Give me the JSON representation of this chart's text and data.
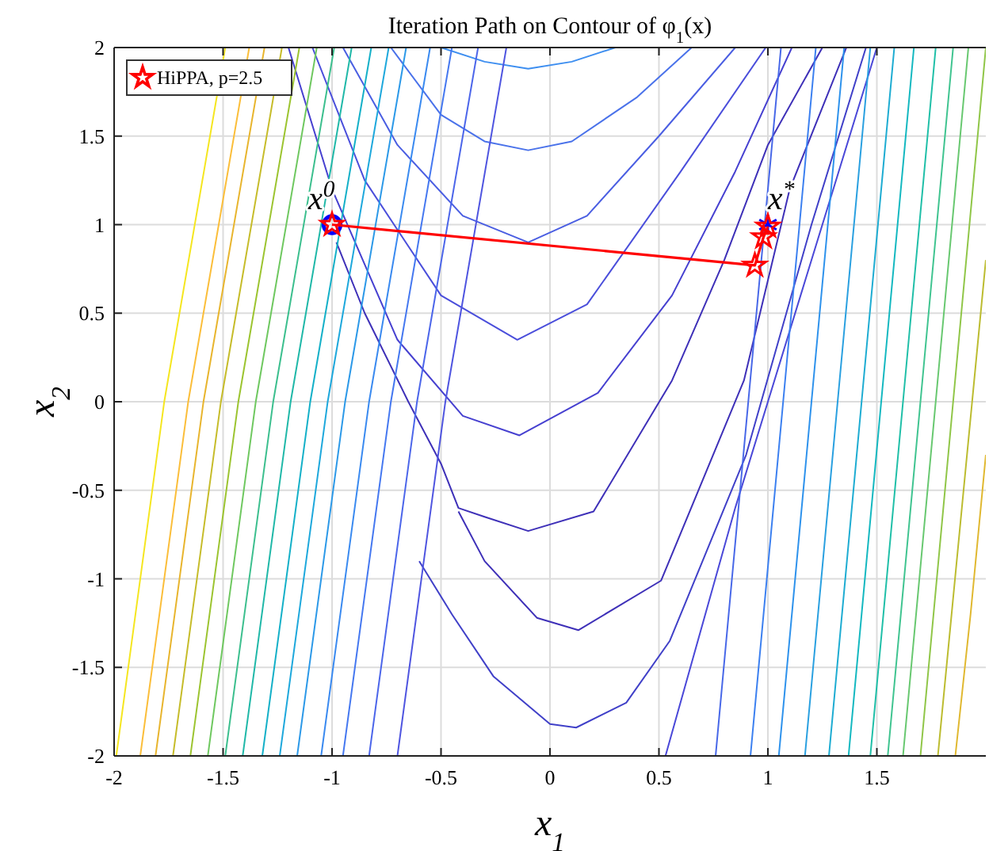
{
  "chart_data": {
    "type": "line",
    "title": "Iteration Path on Contour of φ$_{1}$(x)",
    "xlabel": "x$_{1}$",
    "ylabel": "x$_{2}$",
    "xlim": [
      -2,
      2
    ],
    "ylim": [
      -2,
      2
    ],
    "xticks": [
      -2,
      -1.5,
      -1,
      -0.5,
      0,
      0.5,
      1,
      1.5
    ],
    "yticks": [
      -2,
      -1.5,
      -1,
      -0.5,
      0,
      0.5,
      1,
      1.5,
      2
    ],
    "grid": true,
    "legend": "top left",
    "annotations": [
      {
        "text": "x$^{0}$",
        "x": -1,
        "y": 1
      },
      {
        "text": "x$^{*}$",
        "x": 1,
        "y": 1
      }
    ],
    "series": [
      {
        "color": "#3d8ef0",
        "marker": "none",
        "x": [
          -0.5,
          -0.3,
          -0.1,
          0.1,
          0.3
        ],
        "values": [
          2,
          1.92,
          1.88,
          1.92,
          2
        ]
      },
      {
        "color": "#4a72ea",
        "marker": "none",
        "x": [
          -0.73,
          -0.5,
          -0.3,
          -0.1,
          0.1,
          0.4,
          0.65
        ],
        "values": [
          2,
          1.62,
          1.47,
          1.42,
          1.47,
          1.72,
          2
        ]
      },
      {
        "color": "#4a5ee2",
        "marker": "none",
        "x": [
          -0.95,
          -0.7,
          -0.4,
          -0.1,
          0.17,
          0.5,
          0.85
        ],
        "values": [
          2,
          1.45,
          1.05,
          0.9,
          1.05,
          1.5,
          2
        ]
      },
      {
        "color": "#4a4edb",
        "marker": "none",
        "x": [
          -1.09,
          -0.85,
          -0.5,
          -0.15,
          0.17,
          0.6,
          0.99
        ],
        "values": [
          2,
          1.25,
          0.6,
          0.35,
          0.55,
          1.3,
          2
        ]
      },
      {
        "color": "#4640d0",
        "marker": "none",
        "x": [
          -1.2,
          -1.0,
          -0.7,
          -0.4,
          -0.14,
          0.22,
          0.56,
          0.85,
          1.11
        ],
        "values": [
          2,
          1.2,
          0.35,
          -0.08,
          -0.19,
          0.05,
          0.6,
          1.3,
          2
        ]
      },
      {
        "color": "#3e30b8",
        "marker": "none",
        "x": [
          -0.98,
          -0.85,
          -0.65,
          -0.5,
          -0.42,
          -0.3,
          -0.1,
          0.2,
          0.56,
          0.8,
          1.0,
          1.25
        ],
        "values": [
          0.9,
          0.5,
          0.0,
          -0.35,
          -0.6,
          -0.65,
          -0.73,
          -0.62,
          0.12,
          0.8,
          1.45,
          2
        ]
      },
      {
        "color": "#3e30b8",
        "marker": "none",
        "x": [
          -0.42,
          -0.3,
          -0.06,
          0.13,
          0.51,
          0.89,
          1.1,
          1.36
        ],
        "values": [
          -0.62,
          -0.9,
          -1.22,
          -1.29,
          -1.01,
          0.12,
          1.2,
          2
        ]
      },
      {
        "color": "#4040c8",
        "marker": "none",
        "x": [
          -0.6,
          -0.45,
          -0.26,
          0,
          0.12,
          0.35,
          0.55,
          0.9,
          1.2,
          1.45
        ],
        "values": [
          -0.9,
          -1.2,
          -1.55,
          -1.82,
          -1.84,
          -1.7,
          -1.35,
          -0.3,
          1.0,
          2
        ]
      },
      {
        "color": "#4a48d8",
        "marker": "none",
        "x": [
          0.53,
          0.85,
          1.15,
          1.5
        ],
        "values": [
          -2,
          -0.6,
          0.6,
          2
        ]
      },
      {
        "color": "#f5e620",
        "marker": "none",
        "x": [
          -1.99,
          -1.77,
          -1.49
        ],
        "values": [
          -2,
          0,
          2
        ]
      },
      {
        "color": "#fbbe3a",
        "marker": "none",
        "x": [
          -1.88,
          -1.66,
          -1.38
        ],
        "values": [
          -2,
          0,
          2
        ]
      },
      {
        "color": "#e8b52e",
        "marker": "none",
        "x": [
          -1.81,
          -1.59,
          -1.31
        ],
        "values": [
          -2,
          0,
          2
        ]
      },
      {
        "color": "#c6bc2a",
        "marker": "none",
        "x": [
          -1.73,
          -1.51,
          -1.23
        ],
        "values": [
          -2,
          0,
          2
        ]
      },
      {
        "color": "#9cc430",
        "marker": "none",
        "x": [
          -1.65,
          -1.43,
          -1.15
        ],
        "values": [
          -2,
          0,
          2
        ]
      },
      {
        "color": "#6fc860",
        "marker": "none",
        "x": [
          -1.57,
          -1.35,
          -1.07
        ],
        "values": [
          -2,
          0,
          2
        ]
      },
      {
        "color": "#3cbf8e",
        "marker": "none",
        "x": [
          -1.49,
          -1.27,
          -0.99
        ],
        "values": [
          -2,
          0,
          2
        ]
      },
      {
        "color": "#20b8a8",
        "marker": "none",
        "x": [
          -1.41,
          -1.19,
          -0.91
        ],
        "values": [
          -2,
          0,
          2
        ]
      },
      {
        "color": "#14b0c8",
        "marker": "none",
        "x": [
          -1.32,
          -1.1,
          -0.82
        ],
        "values": [
          -2,
          0,
          2
        ]
      },
      {
        "color": "#1ea8dc",
        "marker": "none",
        "x": [
          -1.24,
          -1.02,
          -0.74
        ],
        "values": [
          -2,
          0,
          2
        ]
      },
      {
        "color": "#2c99e8",
        "marker": "none",
        "x": [
          -1.16,
          -0.94,
          -0.66
        ],
        "values": [
          -2,
          0,
          2
        ]
      },
      {
        "color": "#3a8af0",
        "marker": "none",
        "x": [
          -1.05,
          -0.83,
          -0.55
        ],
        "values": [
          -2,
          0,
          2
        ]
      },
      {
        "color": "#4578f0",
        "marker": "none",
        "x": [
          -0.95,
          -0.73,
          -0.45
        ],
        "values": [
          -2,
          0,
          2
        ]
      },
      {
        "color": "#4c66ea",
        "marker": "none",
        "x": [
          -0.83,
          -0.61,
          -0.33
        ],
        "values": [
          -2,
          0,
          2
        ]
      },
      {
        "color": "#4f55e0",
        "marker": "none",
        "x": [
          -0.7,
          -0.48,
          -0.2
        ],
        "values": [
          -2,
          0,
          2
        ]
      },
      {
        "color": "#4868e8",
        "marker": "none",
        "x": [
          0.76,
          0.91,
          1.06
        ],
        "values": [
          -2,
          0,
          2
        ]
      },
      {
        "color": "#3c80f0",
        "marker": "none",
        "x": [
          0.92,
          1.07,
          1.22
        ],
        "values": [
          -2,
          0,
          2
        ]
      },
      {
        "color": "#2e92ec",
        "marker": "none",
        "x": [
          1.05,
          1.2,
          1.35
        ],
        "values": [
          -2,
          0,
          2
        ]
      },
      {
        "color": "#2aa0e0",
        "marker": "none",
        "x": [
          1.17,
          1.32,
          1.47
        ],
        "values": [
          -2,
          0,
          2
        ]
      },
      {
        "color": "#1eacd2",
        "marker": "none",
        "x": [
          1.28,
          1.43,
          1.58
        ],
        "values": [
          -2,
          0,
          2
        ]
      },
      {
        "color": "#14b8c0",
        "marker": "none",
        "x": [
          1.37,
          1.52,
          1.67
        ],
        "values": [
          -2,
          0,
          2
        ]
      },
      {
        "color": "#20bfa8",
        "marker": "none",
        "x": [
          1.47,
          1.62,
          1.77
        ],
        "values": [
          -2,
          0,
          2
        ]
      },
      {
        "color": "#40c490",
        "marker": "none",
        "x": [
          1.55,
          1.7,
          1.85
        ],
        "values": [
          -2,
          0,
          2
        ]
      },
      {
        "color": "#68c870",
        "marker": "none",
        "x": [
          1.62,
          1.77,
          1.92
        ],
        "values": [
          -2,
          0,
          2
        ]
      },
      {
        "color": "#90c648",
        "marker": "none",
        "x": [
          1.7,
          1.85,
          2.0
        ],
        "values": [
          -2,
          0,
          2
        ]
      },
      {
        "color": "#bcbc30",
        "marker": "none",
        "x": [
          1.78,
          1.89,
          2.0
        ],
        "values": [
          -2,
          -0.6,
          0.8
        ]
      },
      {
        "color": "#e0b830",
        "marker": "none",
        "x": [
          1.86,
          1.93,
          2.0
        ],
        "values": [
          -2,
          -1.2,
          -0.3
        ]
      },
      {
        "type": "scatter",
        "color": "#0000ff",
        "marker": "circle",
        "x": [
          -1
        ],
        "values": [
          1
        ]
      },
      {
        "type": "scatter",
        "color": "#0000ff",
        "marker": "cross",
        "x": [
          1
        ],
        "values": [
          1
        ]
      },
      {
        "name": "HiPPA, p=2.5",
        "color": "#ff0000",
        "marker": "star",
        "x": [
          -1,
          0.94,
          0.98,
          1.0
        ],
        "values": [
          1,
          0.77,
          0.93,
          0.99
        ]
      }
    ]
  }
}
